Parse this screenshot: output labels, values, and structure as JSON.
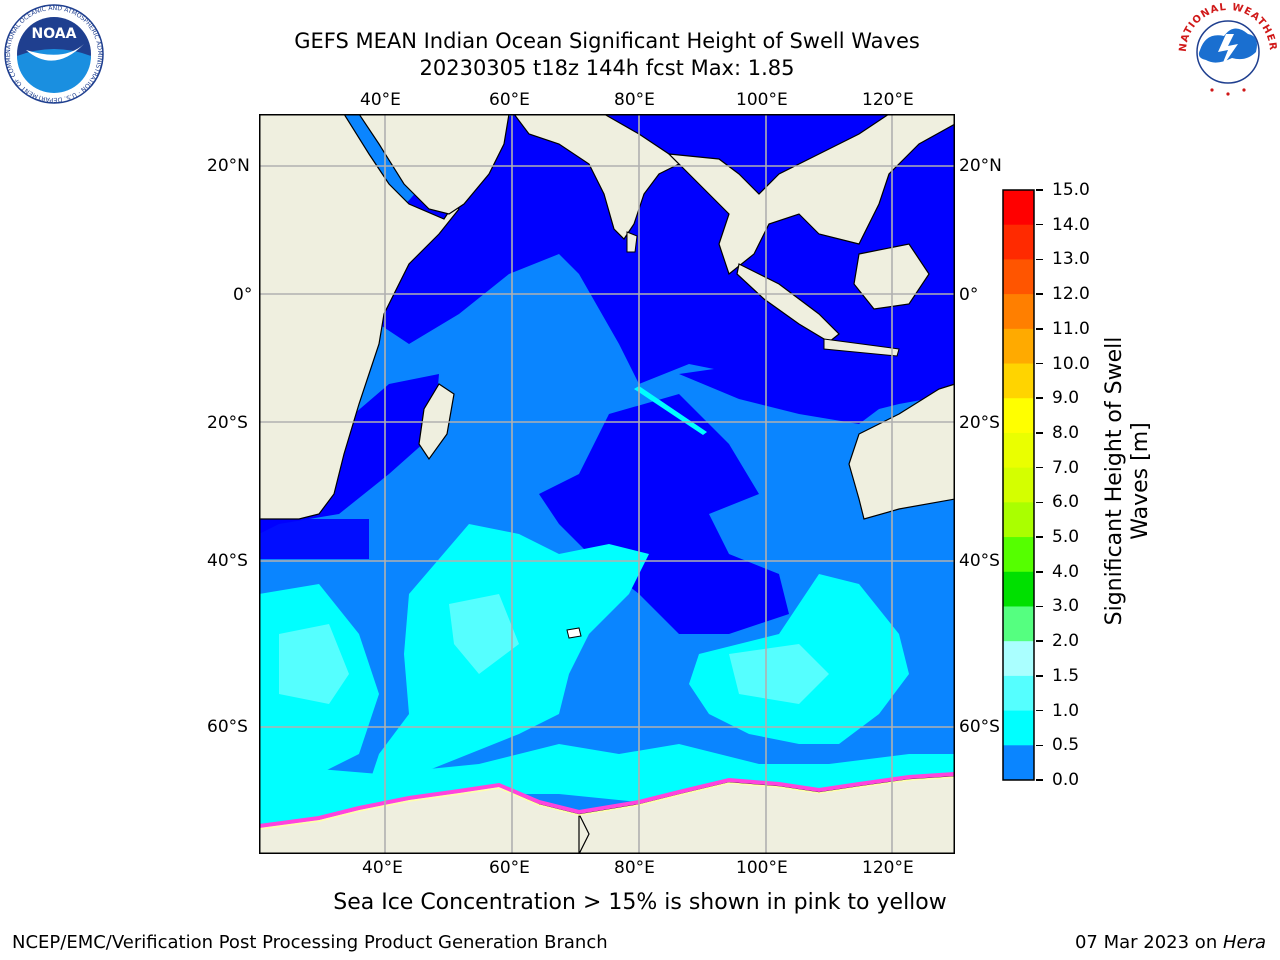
{
  "title": {
    "line1": "GEFS MEAN Indian Ocean Significant Height of Swell Waves",
    "line2": "20230305 t18z 144h fcst   Max: 1.85"
  },
  "map": {
    "lon_ticks": [
      "40°E",
      "60°E",
      "80°E",
      "100°E",
      "120°E"
    ],
    "lat_ticks": [
      "20°N",
      "0°",
      "20°S",
      "40°S",
      "60°S"
    ],
    "colors": {
      "land": "#efefdf",
      "deep": "#0000ff",
      "mid": "#0a85ff",
      "light": "#00ffff",
      "pale": "#55ffff",
      "grid": "#b0b0b0"
    }
  },
  "colorbar": {
    "label_line1": "Significant Height of Swell",
    "label_line2": "Waves [m]",
    "ticks": [
      "15.0",
      "14.0",
      "13.0",
      "12.0",
      "11.0",
      "10.0",
      "9.0",
      "8.0",
      "7.0",
      "6.0",
      "5.0",
      "4.0",
      "3.0",
      "2.0",
      "1.5",
      "1.0",
      "0.5",
      "0.0"
    ],
    "colors": [
      "#ff0000",
      "#ff2a00",
      "#ff5500",
      "#ff7f00",
      "#ffaa00",
      "#ffd400",
      "#ffff00",
      "#eaff00",
      "#d4ff00",
      "#aaff00",
      "#55ff00",
      "#00e000",
      "#55ff80",
      "#aaffff",
      "#55ffff",
      "#00ffff",
      "#0a85ff",
      "#0000ff"
    ]
  },
  "note": "Sea Ice Concentration > 15% is shown in pink to yellow",
  "footer": {
    "left": "NCEP/EMC/Verification Post Processing Product Generation Branch",
    "right_prefix": "07 Mar 2023 on ",
    "right_host": "Hera"
  },
  "logos": {
    "noaa_text": "NOAA",
    "noaa_ring": "NATIONAL OCEANIC AND ATMOSPHERIC ADMINISTRATION · U.S. DEPARTMENT OF COMMERCE",
    "nws_ring": "NATIONAL WEATHER SERVICE"
  }
}
